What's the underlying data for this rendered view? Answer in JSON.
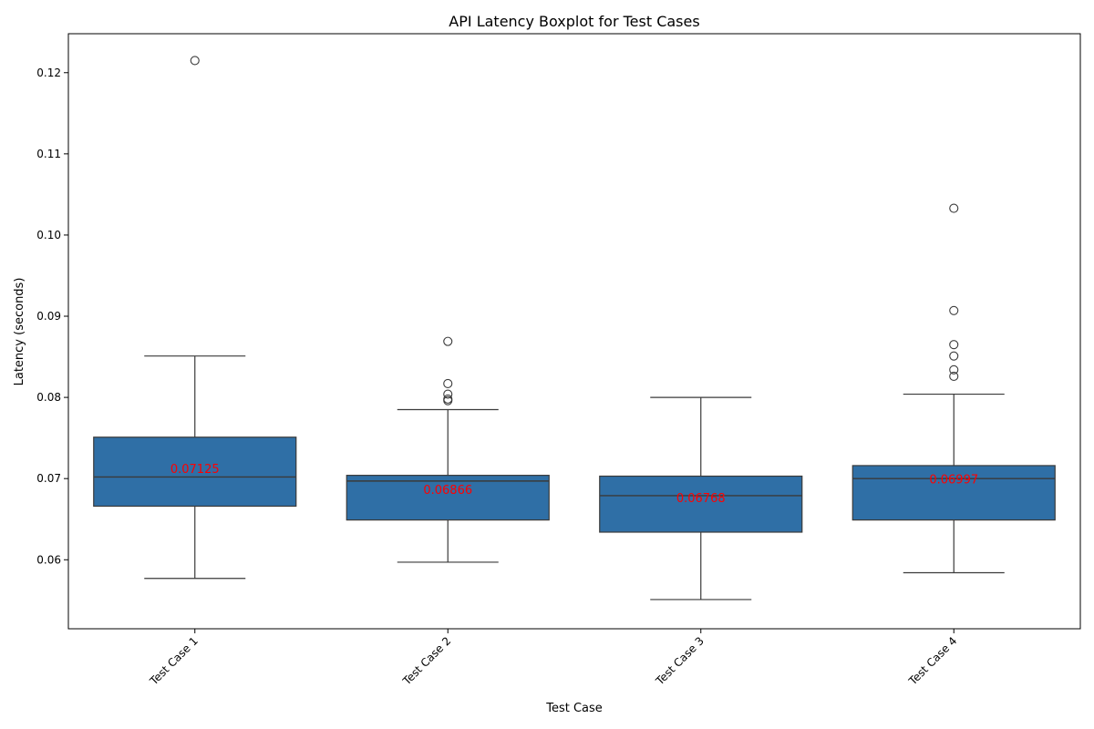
{
  "chart_data": {
    "type": "boxplot",
    "title": "API Latency Boxplot for Test Cases",
    "xlabel": "Test Case",
    "ylabel": "Latency (seconds)",
    "ylim": [
      0.0515,
      0.1248
    ],
    "yticks": [
      0.06,
      0.07,
      0.08,
      0.09,
      0.1,
      0.11,
      0.12
    ],
    "ytick_labels": [
      "0.06",
      "0.07",
      "0.08",
      "0.09",
      "0.10",
      "0.11",
      "0.12"
    ],
    "grid": false,
    "categories": [
      "Test Case 1",
      "Test Case 2",
      "Test Case 3",
      "Test Case 4"
    ],
    "box_color": "#2f6fa6",
    "line_color": "#3a3a3a",
    "mean_label_color": "#ff0000",
    "boxes": [
      {
        "whisker_low": 0.0577,
        "q1": 0.0666,
        "median": 0.0702,
        "q3": 0.0751,
        "whisker_high": 0.0851,
        "outliers": [
          0.1215
        ],
        "mean": 0.07125,
        "mean_label": "0.07125"
      },
      {
        "whisker_low": 0.0597,
        "q1": 0.0649,
        "median": 0.0697,
        "q3": 0.0704,
        "whisker_high": 0.0785,
        "outliers": [
          0.0869,
          0.0817,
          0.0804,
          0.0798,
          0.0796
        ],
        "mean": 0.06866,
        "mean_label": "0.06866"
      },
      {
        "whisker_low": 0.0551,
        "q1": 0.0634,
        "median": 0.0679,
        "q3": 0.0703,
        "whisker_high": 0.08,
        "outliers": [],
        "mean": 0.06768,
        "mean_label": "0.06768"
      },
      {
        "whisker_low": 0.0584,
        "q1": 0.0649,
        "median": 0.07,
        "q3": 0.0716,
        "whisker_high": 0.0804,
        "outliers": [
          0.1033,
          0.0907,
          0.0865,
          0.0851,
          0.0834,
          0.0826
        ],
        "mean": 0.06997,
        "mean_label": "0.06997"
      }
    ]
  }
}
